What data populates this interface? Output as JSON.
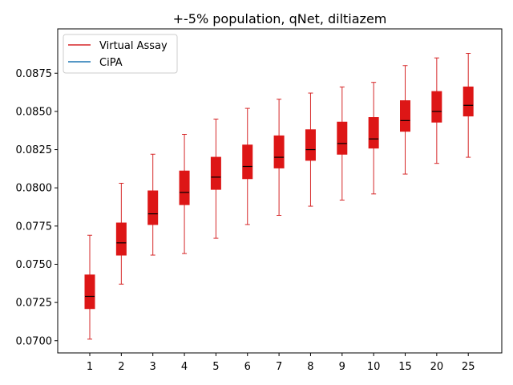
{
  "chart_data": {
    "type": "box",
    "title": "+-5% population, qNet, diltiazem",
    "xlabel": "",
    "ylabel": "",
    "categories": [
      "1",
      "2",
      "3",
      "4",
      "5",
      "6",
      "7",
      "8",
      "9",
      "10",
      "15",
      "20",
      "25"
    ],
    "ylim": [
      0.0692,
      0.0904
    ],
    "yticks": [
      0.07,
      0.0725,
      0.075,
      0.0775,
      0.08,
      0.0825,
      0.085,
      0.0875
    ],
    "ytick_labels": [
      "0.0700",
      "0.0725",
      "0.0750",
      "0.0775",
      "0.0800",
      "0.0825",
      "0.0850",
      "0.0875"
    ],
    "grid": false,
    "legend_position": "upper-left",
    "series": [
      {
        "name": "Virtual Assay",
        "color": "#d62728",
        "box_fill": "#dd1616",
        "median_color": "#000000",
        "boxes": [
          {
            "whislo": 0.0701,
            "q1": 0.0721,
            "med": 0.0729,
            "q3": 0.0743,
            "whishi": 0.0769
          },
          {
            "whislo": 0.0737,
            "q1": 0.0756,
            "med": 0.0764,
            "q3": 0.0777,
            "whishi": 0.0803
          },
          {
            "whislo": 0.0756,
            "q1": 0.0776,
            "med": 0.0783,
            "q3": 0.0798,
            "whishi": 0.0822
          },
          {
            "whislo": 0.0757,
            "q1": 0.0789,
            "med": 0.0797,
            "q3": 0.0811,
            "whishi": 0.0835
          },
          {
            "whislo": 0.0767,
            "q1": 0.0799,
            "med": 0.0807,
            "q3": 0.082,
            "whishi": 0.0845
          },
          {
            "whislo": 0.0776,
            "q1": 0.0806,
            "med": 0.0814,
            "q3": 0.0828,
            "whishi": 0.0852
          },
          {
            "whislo": 0.0782,
            "q1": 0.0813,
            "med": 0.082,
            "q3": 0.0834,
            "whishi": 0.0858
          },
          {
            "whislo": 0.0788,
            "q1": 0.0818,
            "med": 0.0825,
            "q3": 0.0838,
            "whishi": 0.0862
          },
          {
            "whislo": 0.0792,
            "q1": 0.0822,
            "med": 0.0829,
            "q3": 0.0843,
            "whishi": 0.0866
          },
          {
            "whislo": 0.0796,
            "q1": 0.0826,
            "med": 0.0832,
            "q3": 0.0846,
            "whishi": 0.0869
          },
          {
            "whislo": 0.0809,
            "q1": 0.0837,
            "med": 0.0844,
            "q3": 0.0857,
            "whishi": 0.088
          },
          {
            "whislo": 0.0816,
            "q1": 0.0843,
            "med": 0.085,
            "q3": 0.0863,
            "whishi": 0.0885
          },
          {
            "whislo": 0.082,
            "q1": 0.0847,
            "med": 0.0854,
            "q3": 0.0866,
            "whishi": 0.0888
          }
        ]
      },
      {
        "name": "CiPA",
        "color": "#1f77b4",
        "boxes": []
      }
    ]
  }
}
